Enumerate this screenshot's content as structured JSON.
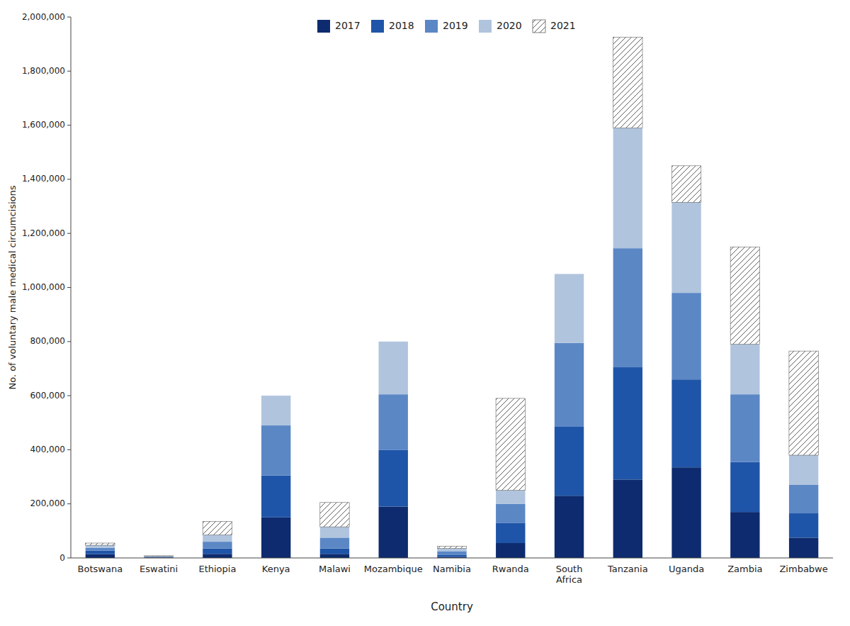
{
  "chart_data": {
    "type": "bar",
    "stacked": true,
    "categories": [
      "Botswana",
      "Eswatini",
      "Ethiopia",
      "Kenya",
      "Malawi",
      "Mozambique",
      "Namibia",
      "Rwanda",
      "South\nAfrica",
      "Tanzania",
      "Uganda",
      "Zambia",
      "Zimbabwe"
    ],
    "series": [
      {
        "name": "2017",
        "color": "#0d2b6e",
        "values": [
          14000,
          2000,
          15000,
          150000,
          15000,
          190000,
          4000,
          55000,
          230000,
          290000,
          335000,
          170000,
          75000
        ]
      },
      {
        "name": "2018",
        "color": "#1f55a8",
        "values": [
          13000,
          1500,
          20000,
          155000,
          20000,
          210000,
          8000,
          75000,
          255000,
          415000,
          325000,
          185000,
          90000
        ]
      },
      {
        "name": "2019",
        "color": "#5b87c5",
        "values": [
          10000,
          1500,
          25000,
          185000,
          40000,
          205000,
          13000,
          70000,
          310000,
          440000,
          320000,
          250000,
          105000
        ]
      },
      {
        "name": "2020",
        "color": "#b0c4de",
        "values": [
          10000,
          1500,
          25000,
          110000,
          40000,
          195000,
          10000,
          50000,
          255000,
          445000,
          335000,
          185000,
          110000
        ]
      },
      {
        "name": "2021",
        "color": "#606060",
        "values": [
          8000,
          1500,
          50000,
          0,
          90000,
          0,
          8000,
          340000,
          0,
          335000,
          135000,
          360000,
          385000
        ]
      }
    ],
    "xlabel": "Country",
    "ylabel": "No. of voluntary male medical circumcisions",
    "ylim": [
      0,
      2000000
    ],
    "yticks": [
      0,
      {
        "value": 200000,
        "label": "200,000"
      },
      {
        "value": 400000,
        "label": "400,000"
      },
      {
        "value": 600000,
        "label": "600,000"
      },
      {
        "value": 800000,
        "label": "800,000"
      },
      {
        "value": 1000000,
        "label": "1,000,000"
      },
      {
        "value": 1200000,
        "label": "1,200,000"
      },
      {
        "value": 1400000,
        "label": "1,400,000"
      },
      {
        "value": 1600000,
        "label": "1,600,000"
      },
      {
        "value": 1800000,
        "label": "1,800,000"
      },
      {
        "value": 2000000,
        "label": "2,000,000"
      }
    ],
    "grid": false,
    "legend": "upper center"
  }
}
